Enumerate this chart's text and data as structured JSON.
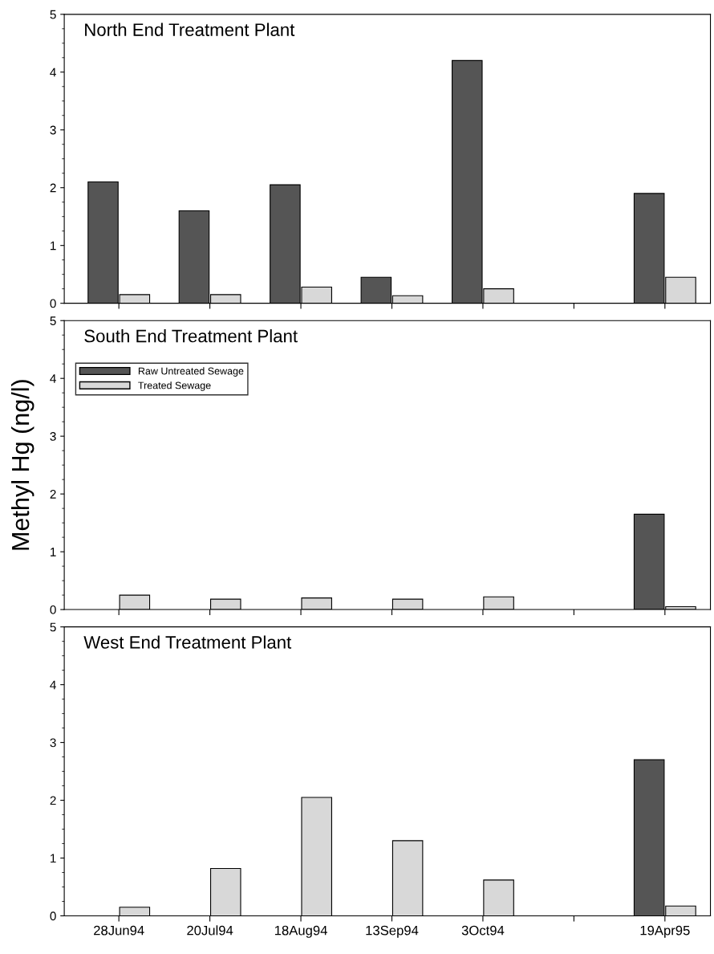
{
  "chart_data": [
    {
      "type": "bar",
      "title": "North End Treatment Plant",
      "categories": [
        null,
        null,
        null,
        null,
        null,
        null,
        null
      ],
      "ylim": [
        0,
        5
      ],
      "yticks": [
        0,
        1,
        2,
        3,
        4,
        5
      ],
      "tick_labels": "y",
      "series": [
        {
          "color": "#555555",
          "values": [
            2.1,
            1.6,
            2.05,
            0.45,
            4.2,
            null,
            1.9
          ]
        },
        {
          "color": "#d8d8d8",
          "values": [
            0.15,
            0.15,
            0.28,
            0.13,
            0.25,
            null,
            0.45
          ]
        }
      ]
    },
    {
      "type": "bar",
      "title": "South End Treatment Plant",
      "ylabel": "Methyl Hg (ng/l)",
      "categories": [
        null,
        null,
        null,
        null,
        null,
        null,
        null
      ],
      "ylim": [
        0,
        5
      ],
      "yticks": [
        0,
        1,
        2,
        3,
        4,
        5
      ],
      "tick_labels": "y",
      "legend": "top left",
      "series": [
        {
          "name": "Raw Untreated Sewage",
          "color": "#555555",
          "values": [
            null,
            null,
            null,
            null,
            null,
            null,
            1.65
          ]
        },
        {
          "name": "Treated Sewage",
          "color": "#d8d8d8",
          "values": [
            0.25,
            0.18,
            0.2,
            0.18,
            0.22,
            null,
            0.05
          ]
        }
      ]
    },
    {
      "type": "bar",
      "title": "West End Treatment Plant",
      "categories": [
        "28Jun94",
        "20Jul94",
        "18Aug94",
        "13Sep94",
        "3Oct94",
        null,
        "19Apr95"
      ],
      "ylim": [
        0,
        5
      ],
      "yticks": [
        0,
        1,
        2,
        3,
        4,
        5
      ],
      "series": [
        {
          "color": "#555555",
          "values": [
            null,
            null,
            null,
            null,
            null,
            null,
            2.7
          ]
        },
        {
          "color": "#d8d8d8",
          "values": [
            0.15,
            0.82,
            2.05,
            1.3,
            0.62,
            null,
            0.17
          ]
        }
      ]
    }
  ]
}
